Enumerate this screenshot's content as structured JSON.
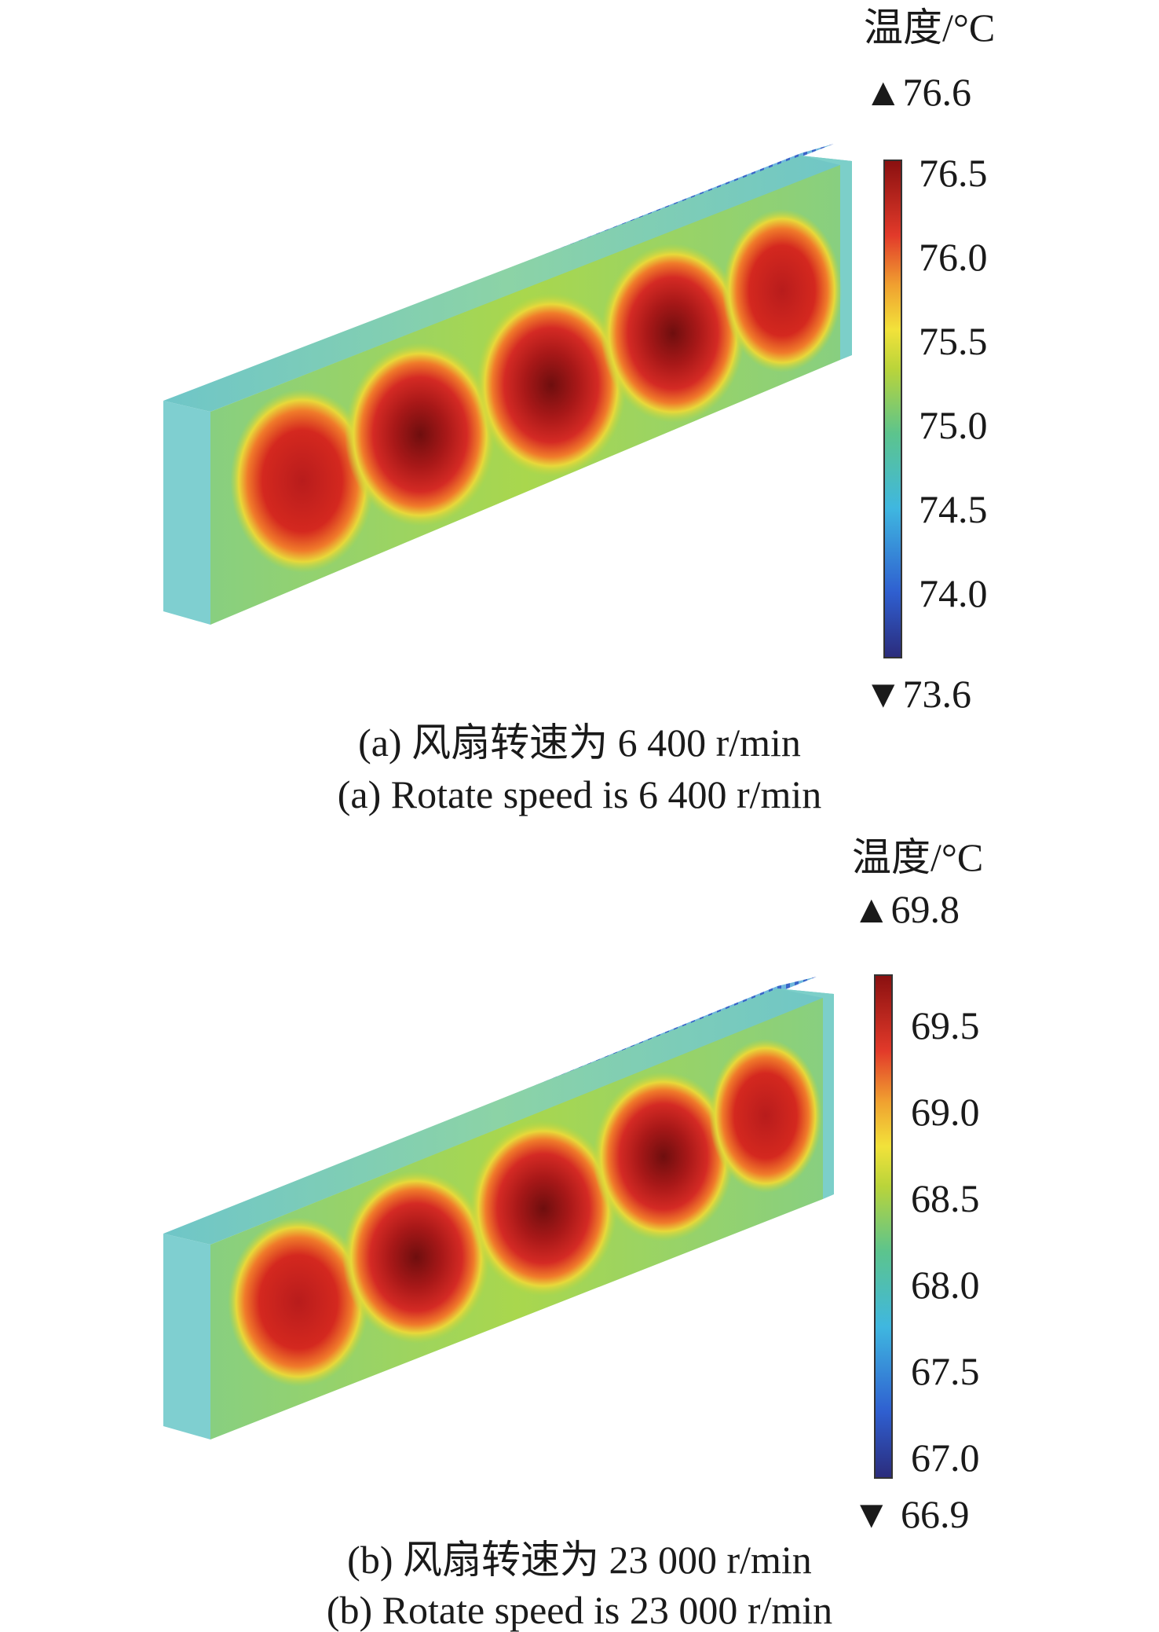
{
  "figures": [
    {
      "id": "a",
      "unit_label": "温度/°C",
      "max_label": "▲76.6",
      "min_label": "▼73.6",
      "colorbar": {
        "min": 73.6,
        "max": 76.6,
        "ticks": [
          "76.5",
          "76.0",
          "75.5",
          "75.0",
          "74.5",
          "74.0"
        ]
      },
      "caption_cn": "(a) 风扇转速为 6 400 r/min",
      "caption_en": "(a) Rotate speed is 6 400 r/min"
    },
    {
      "id": "b",
      "unit_label": "温度/°C",
      "max_label": "▲69.8",
      "min_label": "▼ 66.9",
      "colorbar": {
        "min": 66.9,
        "max": 69.8,
        "ticks": [
          "69.5",
          "69.0",
          "68.5",
          "68.0",
          "67.5",
          "67.0"
        ]
      },
      "caption_cn": "(b) 风扇转速为 23 000 r/min",
      "caption_en": "(b) Rotate speed is 23 000 r/min"
    }
  ],
  "colormap": [
    "#2b2c7c",
    "#2f5fd0",
    "#3fb7e0",
    "#5cc48d",
    "#b9d43a",
    "#f2e23a",
    "#f0a030",
    "#e23a2a",
    "#8a1010"
  ]
}
